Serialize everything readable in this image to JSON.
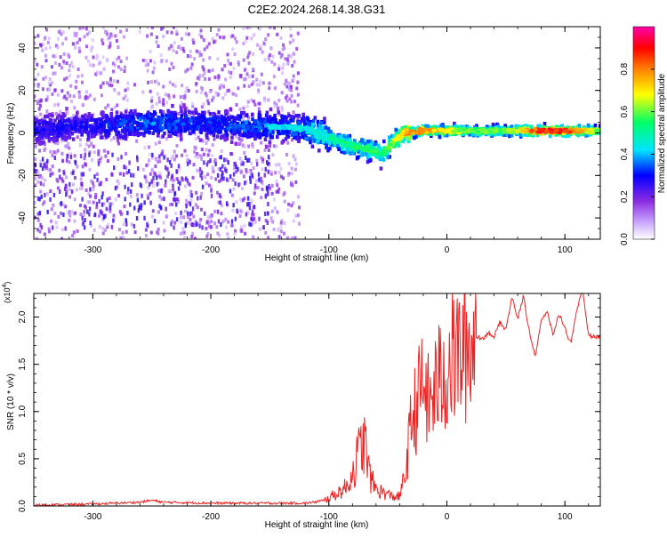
{
  "title": "C2E2.2024.268.14.38.G31",
  "chart_data": [
    {
      "type": "heatmap",
      "title": "C2E2.2024.268.14.38.G31",
      "xlabel": "Height of straight line (km)",
      "ylabel": "Frequency (Hz)",
      "xlim": [
        -350,
        130
      ],
      "ylim": [
        -50,
        50
      ],
      "x_ticks": [
        "-300",
        "-200",
        "-100",
        "0",
        "100"
      ],
      "y_ticks": [
        "-40",
        "-20",
        "0",
        "20",
        "40"
      ],
      "colorbar": {
        "label": "Normalized spectral amplitude",
        "range": [
          0.0,
          1.0
        ],
        "ticks": [
          "0.0",
          "0.2",
          "0.4",
          "0.6",
          "0.8"
        ],
        "colors": [
          "#ffffff",
          "#c9a6ff",
          "#8a2be2",
          "#0000ff",
          "#00e5ff",
          "#00ff66",
          "#ffff00",
          "#ff8000",
          "#ff0000",
          "#ff00aa"
        ]
      },
      "ridge": {
        "x": [
          -350,
          -300,
          -250,
          -200,
          -150,
          -120,
          -100,
          -80,
          -65,
          -55,
          -45,
          -35,
          -20,
          0,
          20,
          50,
          80,
          100,
          130
        ],
        "y": [
          2,
          3,
          5,
          4,
          3,
          2,
          -2,
          -6,
          -8,
          -10,
          -4,
          0,
          1,
          1,
          1,
          1,
          1,
          1,
          1
        ],
        "amplitude": [
          0.35,
          0.35,
          0.45,
          0.4,
          0.45,
          0.45,
          0.5,
          0.55,
          0.55,
          0.55,
          0.65,
          0.8,
          0.8,
          0.7,
          0.6,
          0.6,
          0.9,
          0.9,
          0.6
        ]
      },
      "noise_region": {
        "x_range": [
          -350,
          -125
        ],
        "description": "scattered low-amplitude points"
      }
    },
    {
      "type": "line",
      "xlabel": "Height of straight line (km)",
      "ylabel": "SNR (10 * v/v)",
      "y_scale_label": "(x10",
      "y_scale_exponent": "4",
      "xlim": [
        -350,
        130
      ],
      "ylim": [
        0,
        2.25
      ],
      "x_ticks": [
        "-300",
        "-200",
        "-100",
        "0",
        "100"
      ],
      "y_ticks": [
        "0.0",
        "0.5",
        "1.0",
        "1.5",
        "2.0"
      ],
      "series": [
        {
          "color": "#ee2222",
          "x": [
            -350,
            -300,
            -260,
            -250,
            -240,
            -200,
            -150,
            -120,
            -105,
            -95,
            -85,
            -80,
            -75,
            -70,
            -65,
            -60,
            -55,
            -50,
            -45,
            -40,
            -35,
            -30,
            -25,
            -20,
            -15,
            -10,
            -5,
            0,
            5,
            10,
            15,
            20,
            25,
            30,
            35,
            40,
            45,
            50,
            55,
            60,
            65,
            70,
            75,
            80,
            85,
            90,
            95,
            100,
            105,
            110,
            115,
            120,
            125,
            130
          ],
          "y": [
            0.01,
            0.02,
            0.04,
            0.06,
            0.04,
            0.03,
            0.03,
            0.03,
            0.05,
            0.12,
            0.2,
            0.35,
            0.55,
            0.7,
            0.3,
            0.18,
            0.15,
            0.12,
            0.1,
            0.1,
            0.35,
            0.9,
            1.1,
            1.3,
            1.05,
            1.25,
            1.35,
            1.45,
            1.55,
            1.6,
            1.65,
            1.7,
            1.78,
            1.8,
            1.85,
            1.75,
            1.95,
            1.9,
            2.2,
            1.95,
            2.25,
            1.85,
            1.55,
            1.95,
            2.1,
            1.8,
            2.0,
            1.9,
            1.75,
            2.05,
            2.25,
            1.85,
            1.8,
            1.75
          ]
        }
      ]
    }
  ]
}
